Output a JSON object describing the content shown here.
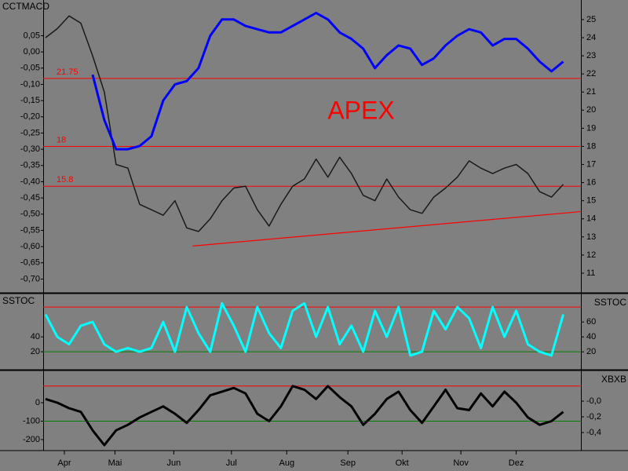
{
  "chart_data": [
    {
      "type": "line",
      "title": "CCTMACD",
      "annotation": "APEX",
      "x": [
        0,
        1,
        2,
        3,
        4,
        5,
        6,
        7,
        8,
        9,
        10,
        11,
        12,
        13,
        14,
        15,
        16,
        17,
        18,
        19,
        20,
        21,
        22,
        23,
        24,
        25,
        26,
        27,
        28,
        29,
        30,
        31,
        32,
        33,
        34,
        35,
        36,
        37,
        38,
        39,
        40,
        41,
        42,
        43,
        44
      ],
      "xlim": [
        -0.2,
        45.5
      ],
      "ylim": [
        -0.74,
        0.16
      ],
      "yticks": [
        {
          "value": 0.05,
          "label": "0,05"
        },
        {
          "value": 0,
          "label": "0,00"
        },
        {
          "value": -0.05,
          "label": "-0,05"
        },
        {
          "value": -0.1,
          "label": "-0,10"
        },
        {
          "value": -0.15,
          "label": "-0,15"
        },
        {
          "value": -0.2,
          "label": "-0,20"
        },
        {
          "value": -0.25,
          "label": "-0,25"
        },
        {
          "value": -0.3,
          "label": "-0,30"
        },
        {
          "value": -0.35,
          "label": "-0,35"
        },
        {
          "value": -0.4,
          "label": "-0,40"
        },
        {
          "value": -0.45,
          "label": "-0,45"
        },
        {
          "value": -0.5,
          "label": "-0,50"
        },
        {
          "value": -0.55,
          "label": "-0,55"
        },
        {
          "value": -0.6,
          "label": "-0,60"
        },
        {
          "value": -0.65,
          "label": "-0,65"
        },
        {
          "value": -0.7,
          "label": "-0,70"
        }
      ],
      "y2lim": [
        9.96,
        26.08
      ],
      "y2ticks": [
        11,
        12,
        13,
        14,
        15,
        16,
        17,
        18,
        19,
        20,
        21,
        22,
        23,
        24,
        25
      ],
      "hlines": [
        21.75,
        18,
        15.8
      ],
      "hline_axis": "y2",
      "hline_color": "#ff0000",
      "hline_labels": true,
      "trendline": {
        "x": [
          12.5,
          45.5
        ],
        "y": [
          12.5,
          14.4
        ],
        "axis": "y2",
        "color": "#ff0000"
      },
      "series": [
        {
          "color": "#1a1a1a",
          "axis": "y2",
          "width": 1.5,
          "values": [
            24,
            24.5,
            25.2,
            24.8,
            23,
            21,
            17,
            16.8,
            14.8,
            14.5,
            14.2,
            15,
            13.5,
            13.3,
            14,
            15,
            15.7,
            15.8,
            14.5,
            13.6,
            14.8,
            15.8,
            16.2,
            17.3,
            16.3,
            17.4,
            16.5,
            15.3,
            15,
            16.2,
            15.2,
            14.5,
            14.3,
            15.2,
            15.7,
            16.3,
            17.2,
            16.8,
            16.5,
            16.8,
            17,
            16.5,
            15.5,
            15.2,
            15.9
          ]
        },
        {
          "color": "#0000ff",
          "axis": "y",
          "width": 3,
          "values": [
            null,
            null,
            null,
            null,
            -0.07,
            -0.21,
            -0.3,
            -0.3,
            -0.29,
            -0.26,
            -0.15,
            -0.1,
            -0.09,
            -0.05,
            0.05,
            0.1,
            0.1,
            0.08,
            0.07,
            0.06,
            0.06,
            0.08,
            0.1,
            0.12,
            0.1,
            0.06,
            0.04,
            0.01,
            -0.05,
            -0.01,
            0.02,
            0.01,
            -0.04,
            -0.02,
            0.02,
            0.05,
            0.07,
            0.06,
            0.02,
            0.04,
            0.04,
            0.01,
            -0.03,
            -0.06,
            -0.03
          ]
        }
      ]
    },
    {
      "type": "line",
      "title": "SSTOC",
      "y2label": "SSTOC",
      "x": [
        0,
        1,
        2,
        3,
        4,
        5,
        6,
        7,
        8,
        9,
        10,
        11,
        12,
        13,
        14,
        15,
        16,
        17,
        18,
        19,
        20,
        21,
        22,
        23,
        24,
        25,
        26,
        27,
        28,
        29,
        30,
        31,
        32,
        33,
        34,
        35,
        36,
        37,
        38,
        39,
        40,
        41,
        42,
        43,
        44
      ],
      "xlim": [
        -0.2,
        45.5
      ],
      "ylim": [
        -3,
        97
      ],
      "yticks": [
        20,
        40
      ],
      "y2lim": [
        -3,
        97
      ],
      "y2ticks": [
        20,
        40,
        60
      ],
      "hlines": [
        80,
        20
      ],
      "hline_axis": "y",
      "hline_colors": [
        "#ff0000",
        "#008000"
      ],
      "hline_labels": false,
      "series": [
        {
          "color": "#00ffff",
          "axis": "y",
          "width": 3,
          "values": [
            70,
            40,
            30,
            55,
            60,
            30,
            20,
            25,
            20,
            25,
            60,
            20,
            80,
            45,
            20,
            85,
            55,
            20,
            80,
            45,
            25,
            75,
            85,
            40,
            80,
            30,
            55,
            20,
            75,
            40,
            80,
            15,
            20,
            75,
            50,
            80,
            65,
            25,
            80,
            40,
            75,
            30,
            20,
            15,
            70
          ]
        }
      ]
    },
    {
      "type": "line",
      "y2label": "XBXB",
      "x": [
        0,
        1,
        2,
        3,
        4,
        5,
        6,
        7,
        8,
        9,
        10,
        11,
        12,
        13,
        14,
        15,
        16,
        17,
        18,
        19,
        20,
        21,
        22,
        23,
        24,
        25,
        26,
        27,
        28,
        29,
        30,
        31,
        32,
        33,
        34,
        35,
        36,
        37,
        38,
        39,
        40,
        41,
        42,
        43,
        44
      ],
      "xlim": [
        -0.2,
        45.5
      ],
      "xticks": [
        {
          "value": 1.6,
          "label": "Apr"
        },
        {
          "value": 5.9,
          "label": "Mai"
        },
        {
          "value": 10.9,
          "label": "Jun"
        },
        {
          "value": 15.8,
          "label": "Jul"
        },
        {
          "value": 20.5,
          "label": "Aug"
        },
        {
          "value": 25.7,
          "label": "Sep"
        },
        {
          "value": 30.3,
          "label": "Okt"
        },
        {
          "value": 35.3,
          "label": "Nov"
        },
        {
          "value": 40,
          "label": "Dez"
        }
      ],
      "ylim": [
        -251,
        170
      ],
      "yticks": [
        0,
        -100,
        -200
      ],
      "y2lim": [
        -0.61,
        0.38
      ],
      "y2ticks": [
        {
          "value": 0,
          "label": "-0,0"
        },
        {
          "value": -0.2,
          "label": "-0,2"
        },
        {
          "value": -0.4,
          "label": "-0,4"
        }
      ],
      "hlines": [
        90,
        -100
      ],
      "hline_axis": "y",
      "hline_colors": [
        "#ff0000",
        "#008000"
      ],
      "hline_labels": false,
      "series": [
        {
          "color": "#000000",
          "axis": "y",
          "width": 3,
          "values": [
            20,
            0,
            -30,
            -50,
            -150,
            -230,
            -150,
            -120,
            -80,
            -50,
            -20,
            -60,
            -110,
            -40,
            40,
            60,
            80,
            50,
            -60,
            -100,
            -20,
            90,
            70,
            20,
            90,
            30,
            -20,
            -120,
            -60,
            20,
            60,
            -40,
            -110,
            -20,
            70,
            -30,
            -40,
            50,
            -20,
            60,
            0,
            -80,
            -120,
            -100,
            -50
          ]
        }
      ]
    }
  ]
}
